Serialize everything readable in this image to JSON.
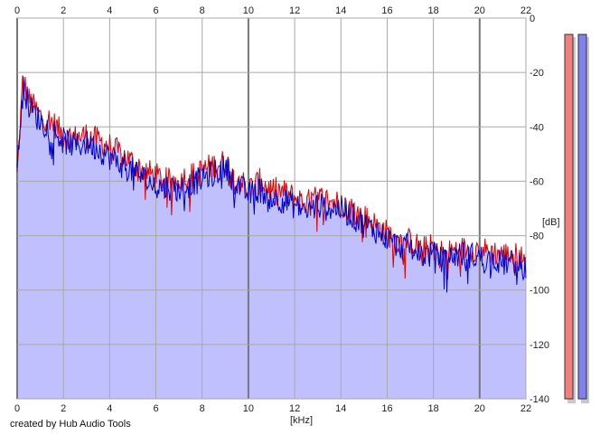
{
  "chart_data": {
    "type": "area",
    "xlabel": "[kHz]",
    "ylabel": "[dB]",
    "xlim": [
      0,
      22
    ],
    "ylim": [
      -140,
      0
    ],
    "x_ticks": [
      0,
      2,
      4,
      6,
      8,
      10,
      12,
      14,
      16,
      18,
      20,
      22
    ],
    "y_ticks": [
      0,
      -20,
      -40,
      -60,
      -80,
      -100,
      -120,
      -140
    ],
    "x_tick_labels": [
      "0",
      "2",
      "4",
      "6",
      "8",
      "10",
      "12",
      "14",
      "16",
      "18",
      "20",
      "22"
    ],
    "y_tick_labels": [
      "0",
      "-20",
      "-40",
      "-60",
      "-80",
      "-100",
      "-120",
      "-140"
    ],
    "grid": true,
    "x": [
      0,
      0.25,
      0.5,
      0.75,
      1,
      1.5,
      2,
      2.5,
      3,
      3.5,
      4,
      4.5,
      5,
      5.5,
      6,
      6.5,
      7,
      7.5,
      8,
      8.5,
      9,
      9.5,
      10,
      10.5,
      11,
      11.5,
      12,
      12.5,
      13,
      13.5,
      14,
      14.5,
      15,
      15.5,
      16,
      16.5,
      17,
      17.5,
      18,
      18.5,
      19,
      19.5,
      20,
      20.5,
      21,
      21.5,
      22
    ],
    "series": [
      {
        "color": "#e00000",
        "values": [
          -58,
          -22,
          -30,
          -33,
          -36,
          -38,
          -43,
          -44,
          -43,
          -45,
          -47,
          -50,
          -53,
          -56,
          -58,
          -60,
          -59,
          -58,
          -56,
          -54,
          -53,
          -58,
          -63,
          -60,
          -63,
          -64,
          -66,
          -68,
          -66,
          -67,
          -68,
          -70,
          -73,
          -76,
          -79,
          -82,
          -82,
          -85,
          -84,
          -87,
          -85,
          -85,
          -85,
          -86,
          -87,
          -87,
          -89
        ]
      },
      {
        "color": "#0000c8",
        "values": [
          -56,
          -24,
          -32,
          -35,
          -38,
          -41,
          -45,
          -47,
          -46,
          -48,
          -51,
          -54,
          -56,
          -59,
          -62,
          -62,
          -63,
          -61,
          -59,
          -57,
          -55,
          -61,
          -65,
          -63,
          -66,
          -67,
          -69,
          -71,
          -69,
          -70,
          -70,
          -73,
          -76,
          -78,
          -81,
          -84,
          -84,
          -87,
          -87,
          -89,
          -87,
          -87,
          -88,
          -89,
          -90,
          -90,
          -92
        ]
      }
    ],
    "meters": {
      "left_color": "#f08080",
      "right_color": "#8080f0",
      "left_level_db": -6,
      "right_level_db": -6
    },
    "colors": {
      "fill": "#c0c0ff",
      "grid": "#a8a8a8",
      "axis": "#555555"
    }
  },
  "footer": {
    "credit": "created by Hub Audio Tools"
  }
}
